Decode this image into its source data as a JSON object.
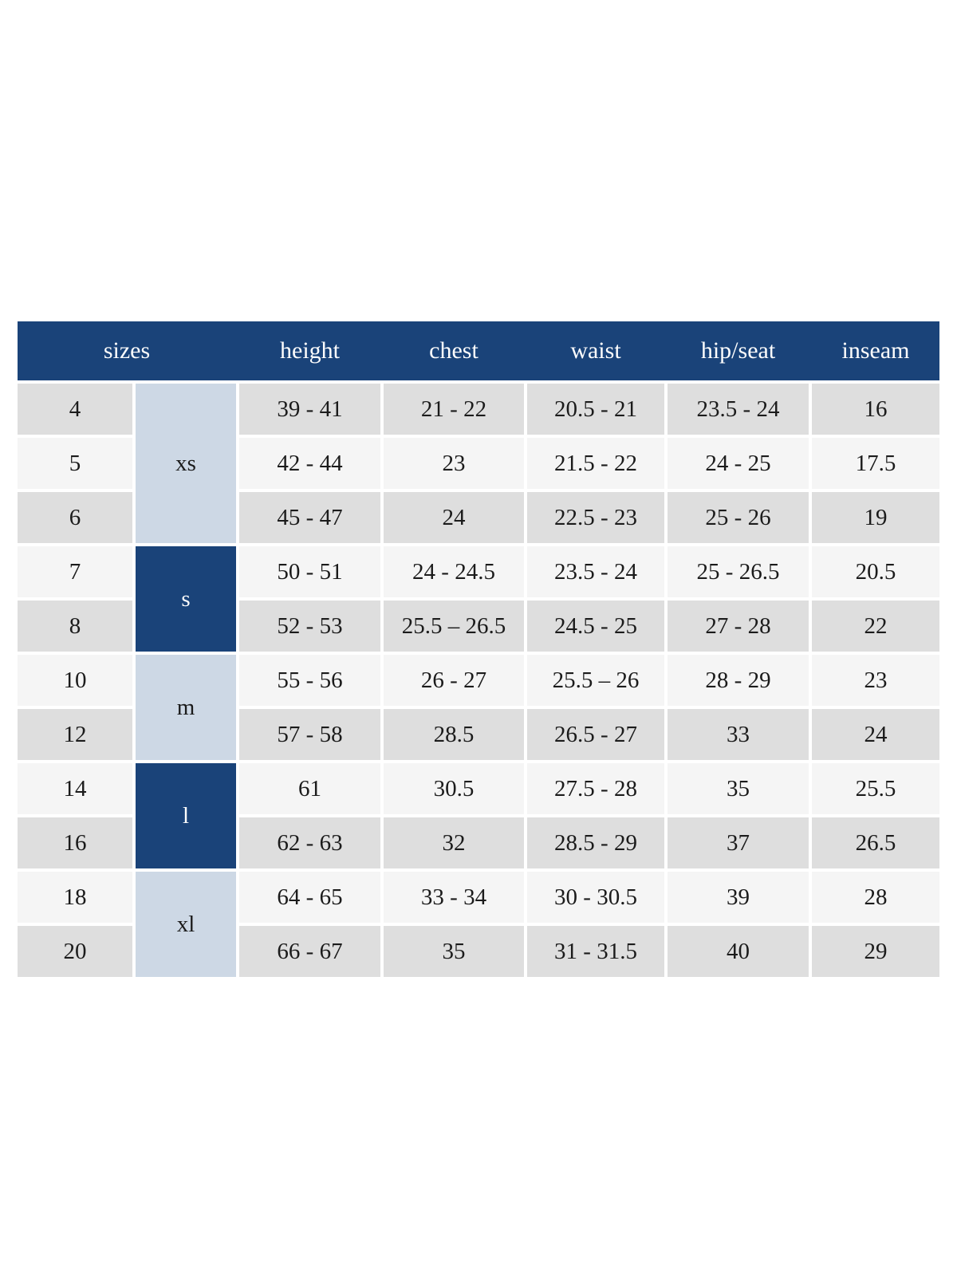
{
  "chart_data": {
    "type": "table",
    "columns": [
      "sizes",
      "height",
      "chest",
      "waist",
      "hip/seat",
      "inseam"
    ],
    "size_groups": [
      {
        "label": "xs",
        "sizes": [
          "4",
          "5",
          "6"
        ],
        "style": "light"
      },
      {
        "label": "s",
        "sizes": [
          "7",
          "8"
        ],
        "style": "dark"
      },
      {
        "label": "m",
        "sizes": [
          "10",
          "12"
        ],
        "style": "light"
      },
      {
        "label": "l",
        "sizes": [
          "14",
          "16"
        ],
        "style": "dark"
      },
      {
        "label": "xl",
        "sizes": [
          "18",
          "20"
        ],
        "style": "light"
      }
    ],
    "rows": [
      {
        "size": "4",
        "group": "xs",
        "height": "39 - 41",
        "chest": "21 - 22",
        "waist": "20.5 - 21",
        "hip_seat": "23.5 - 24",
        "inseam": "16"
      },
      {
        "size": "5",
        "group": "xs",
        "height": "42 - 44",
        "chest": "23",
        "waist": "21.5 - 22",
        "hip_seat": "24 - 25",
        "inseam": "17.5"
      },
      {
        "size": "6",
        "group": "xs",
        "height": "45 - 47",
        "chest": "24",
        "waist": "22.5 - 23",
        "hip_seat": "25 - 26",
        "inseam": "19"
      },
      {
        "size": "7",
        "group": "s",
        "height": "50 - 51",
        "chest": "24 - 24.5",
        "waist": "23.5 - 24",
        "hip_seat": "25 - 26.5",
        "inseam": "20.5"
      },
      {
        "size": "8",
        "group": "s",
        "height": "52 - 53",
        "chest": "25.5 – 26.5",
        "waist": "24.5 - 25",
        "hip_seat": "27 - 28",
        "inseam": "22"
      },
      {
        "size": "10",
        "group": "m",
        "height": "55 - 56",
        "chest": "26 - 27",
        "waist": "25.5 – 26",
        "hip_seat": "28 - 29",
        "inseam": "23"
      },
      {
        "size": "12",
        "group": "m",
        "height": "57 - 58",
        "chest": "28.5",
        "waist": "26.5 - 27",
        "hip_seat": "33",
        "inseam": "24"
      },
      {
        "size": "14",
        "group": "l",
        "height": "61",
        "chest": "30.5",
        "waist": "27.5 - 28",
        "hip_seat": "35",
        "inseam": "25.5"
      },
      {
        "size": "16",
        "group": "l",
        "height": "62 - 63",
        "chest": "32",
        "waist": "28.5 - 29",
        "hip_seat": "37",
        "inseam": "26.5"
      },
      {
        "size": "18",
        "group": "xl",
        "height": "64 - 65",
        "chest": "33 - 34",
        "waist": "30 - 30.5",
        "hip_seat": "39",
        "inseam": "28"
      },
      {
        "size": "20",
        "group": "xl",
        "height": "66 - 67",
        "chest": "35",
        "waist": "31 - 31.5",
        "hip_seat": "40",
        "inseam": "29"
      }
    ],
    "layout": {
      "legend": "none",
      "grid": "white gaps between cells",
      "row_shading": "alternating gray / off-white"
    }
  },
  "colors": {
    "header_bg": "#1a4379",
    "header_text": "#fdfdfd",
    "group_light_bg": "#cdd8e5",
    "group_dark_bg": "#1a4379",
    "row_gray": "#dedede",
    "row_light": "#f5f5f5",
    "body_text": "#1b1b1b",
    "page_bg": "#ffffff"
  }
}
